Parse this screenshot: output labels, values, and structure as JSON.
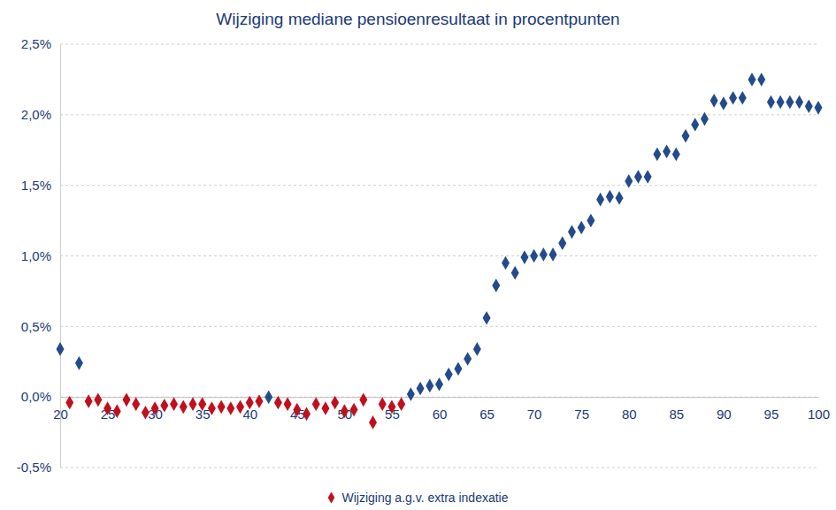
{
  "chart_data": {
    "type": "scatter",
    "title": "Wijziging mediane pensioenresultaat in procentpunten",
    "x": [
      20,
      21,
      22,
      23,
      24,
      25,
      26,
      27,
      28,
      29,
      30,
      31,
      32,
      33,
      34,
      35,
      36,
      37,
      38,
      39,
      40,
      41,
      42,
      43,
      44,
      45,
      46,
      47,
      48,
      49,
      50,
      51,
      52,
      53,
      54,
      55,
      56,
      57,
      58,
      59,
      60,
      61,
      62,
      63,
      64,
      65,
      66,
      67,
      68,
      69,
      70,
      71,
      72,
      73,
      74,
      75,
      76,
      77,
      78,
      79,
      80,
      81,
      82,
      83,
      84,
      85,
      86,
      87,
      88,
      89,
      90,
      91,
      92,
      93,
      94,
      95,
      96,
      97,
      98,
      99,
      100
    ],
    "series": [
      {
        "name": "Wijziging a.g.v. extra indexatie",
        "color": "#c0101e",
        "marker": "diamond",
        "values": [
          0.34,
          -0.04,
          0.24,
          -0.03,
          -0.02,
          -0.08,
          -0.1,
          -0.02,
          -0.05,
          -0.11,
          -0.08,
          -0.06,
          -0.05,
          -0.07,
          -0.05,
          -0.05,
          -0.08,
          -0.07,
          -0.08,
          -0.07,
          -0.04,
          -0.03,
          0.0,
          -0.04,
          -0.05,
          -0.09,
          -0.12,
          -0.05,
          -0.08,
          -0.04,
          -0.1,
          -0.09,
          -0.02,
          -0.18,
          -0.05,
          -0.07,
          -0.05,
          0.02,
          0.06,
          0.08,
          0.09,
          0.16,
          0.2,
          0.27,
          0.34,
          0.56,
          0.79,
          0.95,
          0.88,
          0.99,
          1.0,
          1.01,
          1.01,
          1.09,
          1.17,
          1.2,
          1.25,
          1.4,
          1.42,
          1.41,
          1.53,
          1.56,
          1.56,
          1.72,
          1.74,
          1.72,
          1.85,
          1.93,
          1.97,
          2.1,
          2.08,
          2.12,
          2.12,
          2.25,
          2.25,
          2.09,
          2.09,
          2.09,
          2.09,
          2.06,
          2.05
        ],
        "colors": [
          "#234b8c",
          "#c0101e",
          "#234b8c",
          "#c0101e",
          "#c0101e",
          "#c0101e",
          "#c0101e",
          "#c0101e",
          "#c0101e",
          "#c0101e",
          "#c0101e",
          "#c0101e",
          "#c0101e",
          "#c0101e",
          "#c0101e",
          "#c0101e",
          "#c0101e",
          "#c0101e",
          "#c0101e",
          "#c0101e",
          "#c0101e",
          "#c0101e",
          "#234b8c",
          "#c0101e",
          "#c0101e",
          "#c0101e",
          "#c0101e",
          "#c0101e",
          "#c0101e",
          "#c0101e",
          "#c0101e",
          "#c0101e",
          "#c0101e",
          "#c0101e",
          "#c0101e",
          "#c0101e",
          "#c0101e",
          "#234b8c",
          "#234b8c",
          "#234b8c",
          "#234b8c",
          "#234b8c",
          "#234b8c",
          "#234b8c",
          "#234b8c",
          "#234b8c",
          "#234b8c",
          "#234b8c",
          "#234b8c",
          "#234b8c",
          "#234b8c",
          "#234b8c",
          "#234b8c",
          "#234b8c",
          "#234b8c",
          "#234b8c",
          "#234b8c",
          "#234b8c",
          "#234b8c",
          "#234b8c",
          "#234b8c",
          "#234b8c",
          "#234b8c",
          "#234b8c",
          "#234b8c",
          "#234b8c",
          "#234b8c",
          "#234b8c",
          "#234b8c",
          "#234b8c",
          "#234b8c",
          "#234b8c",
          "#234b8c",
          "#234b8c",
          "#234b8c",
          "#234b8c",
          "#234b8c",
          "#234b8c",
          "#234b8c",
          "#234b8c",
          "#234b8c"
        ]
      }
    ],
    "xlim": [
      20,
      100
    ],
    "xticks": [
      20,
      25,
      30,
      35,
      40,
      45,
      50,
      55,
      60,
      65,
      70,
      75,
      80,
      85,
      90,
      95,
      100
    ],
    "ylim": [
      -0.5,
      2.5
    ],
    "yticks": [
      {
        "value": -0.5,
        "label": "-0,5%"
      },
      {
        "value": 0,
        "label": "0,0%"
      },
      {
        "value": 0.5,
        "label": "0,5%"
      },
      {
        "value": 1,
        "label": "1,0%"
      },
      {
        "value": 1.5,
        "label": "1,5%"
      },
      {
        "value": 2,
        "label": "2,0%"
      },
      {
        "value": 2.5,
        "label": "2,5%"
      }
    ],
    "grid": true,
    "legend": "bottom"
  }
}
